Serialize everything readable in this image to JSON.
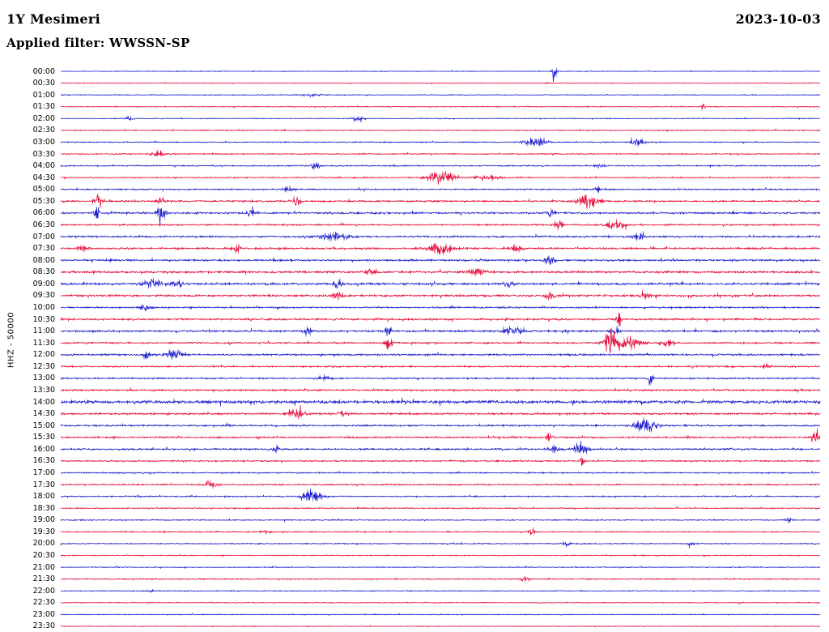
{
  "header": {
    "station": "1Y Mesimeri",
    "date": "2023-10-03",
    "filter": "Applied filter: WWSSN-SP"
  },
  "chart_data": {
    "type": "line",
    "subtype": "helicorder-dayplot",
    "title": "1Y Mesimeri",
    "date": "2023-10-03",
    "filter": "WWSSN-SP",
    "ylabel": "HHZ - 50000",
    "minutes_per_row": 30,
    "x_range_minutes": [
      0,
      30
    ],
    "grid": false,
    "legend": "none",
    "colors": {
      "blue": "#2222cc",
      "red": "#e60f3c"
    },
    "rows": [
      {
        "label": "00:00",
        "color": "blue",
        "noise": 0.45,
        "events": [
          {
            "pos": 0.65,
            "amp": 13,
            "w": 0.002
          }
        ]
      },
      {
        "label": "00:30",
        "color": "red",
        "noise": 0.45,
        "events": []
      },
      {
        "label": "01:00",
        "color": "blue",
        "noise": 0.5,
        "events": [
          {
            "pos": 0.33,
            "amp": 1.5,
            "w": 0.01
          }
        ]
      },
      {
        "label": "01:30",
        "color": "red",
        "noise": 0.55,
        "events": [
          {
            "pos": 0.846,
            "amp": 4,
            "w": 0.002
          }
        ]
      },
      {
        "label": "02:00",
        "color": "blue",
        "noise": 0.55,
        "events": [
          {
            "pos": 0.09,
            "amp": 3,
            "w": 0.004
          },
          {
            "pos": 0.39,
            "amp": 3.5,
            "w": 0.005
          }
        ]
      },
      {
        "label": "02:30",
        "color": "red",
        "noise": 0.65,
        "events": []
      },
      {
        "label": "03:00",
        "color": "blue",
        "noise": 0.7,
        "events": [
          {
            "pos": 0.625,
            "amp": 7,
            "w": 0.01
          },
          {
            "pos": 0.76,
            "amp": 4,
            "w": 0.006
          }
        ]
      },
      {
        "label": "03:30",
        "color": "red",
        "noise": 0.7,
        "events": [
          {
            "pos": 0.128,
            "amp": 3.5,
            "w": 0.006
          }
        ]
      },
      {
        "label": "04:00",
        "color": "blue",
        "noise": 0.8,
        "events": [
          {
            "pos": 0.335,
            "amp": 3.5,
            "w": 0.005
          },
          {
            "pos": 0.71,
            "amp": 2.5,
            "w": 0.004
          }
        ]
      },
      {
        "label": "04:30",
        "color": "red",
        "noise": 0.7,
        "events": [
          {
            "pos": 0.5,
            "amp": 8,
            "w": 0.012
          },
          {
            "pos": 0.56,
            "amp": 4,
            "w": 0.01
          }
        ]
      },
      {
        "label": "05:00",
        "color": "blue",
        "noise": 0.9,
        "events": [
          {
            "pos": 0.3,
            "amp": 2.5,
            "w": 0.006
          },
          {
            "pos": 0.71,
            "amp": 3,
            "w": 0.005
          }
        ]
      },
      {
        "label": "05:30",
        "color": "red",
        "noise": 1.1,
        "events": [
          {
            "pos": 0.048,
            "amp": 11,
            "w": 0.003
          },
          {
            "pos": 0.133,
            "amp": 5,
            "w": 0.004
          },
          {
            "pos": 0.31,
            "amp": 6,
            "w": 0.004
          },
          {
            "pos": 0.695,
            "amp": 9,
            "w": 0.01
          }
        ]
      },
      {
        "label": "06:00",
        "color": "blue",
        "noise": 1.2,
        "events": [
          {
            "pos": 0.048,
            "amp": 7,
            "w": 0.003
          },
          {
            "pos": 0.133,
            "amp": 9,
            "w": 0.004
          },
          {
            "pos": 0.25,
            "amp": 4,
            "w": 0.005
          },
          {
            "pos": 0.645,
            "amp": 4,
            "w": 0.004
          }
        ]
      },
      {
        "label": "06:30",
        "color": "red",
        "noise": 1.0,
        "events": [
          {
            "pos": 0.655,
            "amp": 4.5,
            "w": 0.004
          },
          {
            "pos": 0.73,
            "amp": 6,
            "w": 0.008
          }
        ]
      },
      {
        "label": "07:00",
        "color": "blue",
        "noise": 1.2,
        "events": [
          {
            "pos": 0.36,
            "amp": 5,
            "w": 0.012
          },
          {
            "pos": 0.76,
            "amp": 3,
            "w": 0.005
          }
        ]
      },
      {
        "label": "07:30",
        "color": "red",
        "noise": 1.2,
        "events": [
          {
            "pos": 0.027,
            "amp": 5,
            "w": 0.004
          },
          {
            "pos": 0.232,
            "amp": 4,
            "w": 0.004
          },
          {
            "pos": 0.5,
            "amp": 8,
            "w": 0.01
          },
          {
            "pos": 0.6,
            "amp": 3,
            "w": 0.006
          }
        ]
      },
      {
        "label": "08:00",
        "color": "blue",
        "noise": 1.2,
        "events": [
          {
            "pos": 0.644,
            "amp": 5,
            "w": 0.005
          }
        ]
      },
      {
        "label": "08:30",
        "color": "red",
        "noise": 1.4,
        "events": [
          {
            "pos": 0.41,
            "amp": 3.5,
            "w": 0.006
          },
          {
            "pos": 0.55,
            "amp": 3,
            "w": 0.01
          }
        ]
      },
      {
        "label": "09:00",
        "color": "blue",
        "noise": 1.4,
        "events": [
          {
            "pos": 0.12,
            "amp": 4.5,
            "w": 0.01
          },
          {
            "pos": 0.155,
            "amp": 4,
            "w": 0.006
          },
          {
            "pos": 0.365,
            "amp": 5,
            "w": 0.004
          },
          {
            "pos": 0.59,
            "amp": 3.5,
            "w": 0.006
          }
        ]
      },
      {
        "label": "09:30",
        "color": "red",
        "noise": 1.3,
        "events": [
          {
            "pos": 0.365,
            "amp": 3.5,
            "w": 0.005
          },
          {
            "pos": 0.645,
            "amp": 4.5,
            "w": 0.005
          },
          {
            "pos": 0.77,
            "amp": 3.5,
            "w": 0.005
          }
        ]
      },
      {
        "label": "10:00",
        "color": "blue",
        "noise": 1.0,
        "events": [
          {
            "pos": 0.112,
            "amp": 4.5,
            "w": 0.005
          }
        ]
      },
      {
        "label": "10:30",
        "color": "red",
        "noise": 1.2,
        "events": [
          {
            "pos": 0.735,
            "amp": 11,
            "w": 0.002
          }
        ]
      },
      {
        "label": "11:00",
        "color": "blue",
        "noise": 1.2,
        "events": [
          {
            "pos": 0.325,
            "amp": 4,
            "w": 0.004
          },
          {
            "pos": 0.432,
            "amp": 7,
            "w": 0.003
          },
          {
            "pos": 0.595,
            "amp": 5,
            "w": 0.008
          },
          {
            "pos": 0.73,
            "amp": 4,
            "w": 0.004
          }
        ]
      },
      {
        "label": "11:30",
        "color": "red",
        "noise": 1.1,
        "events": [
          {
            "pos": 0.432,
            "amp": 9,
            "w": 0.003
          },
          {
            "pos": 0.724,
            "amp": 21,
            "w": 0.005
          },
          {
            "pos": 0.745,
            "amp": 10,
            "w": 0.012
          },
          {
            "pos": 0.8,
            "amp": 5,
            "w": 0.006
          }
        ]
      },
      {
        "label": "12:00",
        "color": "blue",
        "noise": 1.2,
        "events": [
          {
            "pos": 0.112,
            "amp": 4,
            "w": 0.004
          },
          {
            "pos": 0.15,
            "amp": 6,
            "w": 0.008
          }
        ]
      },
      {
        "label": "12:30",
        "color": "red",
        "noise": 1.0,
        "events": [
          {
            "pos": 0.93,
            "amp": 2.5,
            "w": 0.004
          }
        ]
      },
      {
        "label": "13:00",
        "color": "blue",
        "noise": 1.0,
        "events": [
          {
            "pos": 0.346,
            "amp": 4,
            "w": 0.005
          },
          {
            "pos": 0.777,
            "amp": 8,
            "w": 0.002
          }
        ]
      },
      {
        "label": "13:30",
        "color": "red",
        "noise": 1.1,
        "events": []
      },
      {
        "label": "14:00",
        "color": "blue",
        "noise": 1.9,
        "events": []
      },
      {
        "label": "14:30",
        "color": "red",
        "noise": 1.2,
        "events": [
          {
            "pos": 0.31,
            "amp": 7,
            "w": 0.008
          },
          {
            "pos": 0.37,
            "amp": 3,
            "w": 0.005
          }
        ]
      },
      {
        "label": "15:00",
        "color": "blue",
        "noise": 1.1,
        "events": [
          {
            "pos": 0.22,
            "amp": 3,
            "w": 0.003
          },
          {
            "pos": 0.77,
            "amp": 9,
            "w": 0.01
          }
        ]
      },
      {
        "label": "15:30",
        "color": "red",
        "noise": 1.0,
        "events": [
          {
            "pos": 0.644,
            "amp": 6,
            "w": 0.003
          },
          {
            "pos": 0.995,
            "amp": 7,
            "w": 0.004
          }
        ]
      },
      {
        "label": "16:00",
        "color": "blue",
        "noise": 1.1,
        "events": [
          {
            "pos": 0.282,
            "amp": 4,
            "w": 0.004
          },
          {
            "pos": 0.65,
            "amp": 5,
            "w": 0.005
          },
          {
            "pos": 0.685,
            "amp": 11,
            "w": 0.006
          }
        ]
      },
      {
        "label": "16:30",
        "color": "red",
        "noise": 0.9,
        "events": [
          {
            "pos": 0.687,
            "amp": 8,
            "w": 0.002
          }
        ]
      },
      {
        "label": "17:00",
        "color": "blue",
        "noise": 0.8,
        "events": []
      },
      {
        "label": "17:30",
        "color": "red",
        "noise": 0.9,
        "events": [
          {
            "pos": 0.197,
            "amp": 4.5,
            "w": 0.006
          }
        ]
      },
      {
        "label": "18:00",
        "color": "blue",
        "noise": 0.8,
        "events": [
          {
            "pos": 0.33,
            "amp": 9,
            "w": 0.009
          }
        ]
      },
      {
        "label": "18:30",
        "color": "red",
        "noise": 0.7,
        "events": []
      },
      {
        "label": "19:00",
        "color": "blue",
        "noise": 0.7,
        "events": [
          {
            "pos": 0.958,
            "amp": 3.5,
            "w": 0.003
          }
        ]
      },
      {
        "label": "19:30",
        "color": "red",
        "noise": 0.7,
        "events": [
          {
            "pos": 0.27,
            "amp": 2.5,
            "w": 0.004
          },
          {
            "pos": 0.62,
            "amp": 3.5,
            "w": 0.003
          }
        ]
      },
      {
        "label": "20:00",
        "color": "blue",
        "noise": 0.7,
        "events": [
          {
            "pos": 0.665,
            "amp": 3.5,
            "w": 0.003
          },
          {
            "pos": 0.83,
            "amp": 3,
            "w": 0.003
          }
        ]
      },
      {
        "label": "20:30",
        "color": "red",
        "noise": 0.6,
        "events": []
      },
      {
        "label": "21:00",
        "color": "blue",
        "noise": 0.6,
        "events": []
      },
      {
        "label": "21:30",
        "color": "red",
        "noise": 0.7,
        "events": [
          {
            "pos": 0.612,
            "amp": 3.5,
            "w": 0.004
          }
        ]
      },
      {
        "label": "22:00",
        "color": "blue",
        "noise": 0.6,
        "events": [
          {
            "pos": 0.117,
            "amp": 2.5,
            "w": 0.003
          }
        ]
      },
      {
        "label": "22:30",
        "color": "red",
        "noise": 0.55,
        "events": []
      },
      {
        "label": "23:00",
        "color": "blue",
        "noise": 0.5,
        "events": []
      },
      {
        "label": "23:30",
        "color": "red",
        "noise": 0.5,
        "events": []
      }
    ]
  }
}
